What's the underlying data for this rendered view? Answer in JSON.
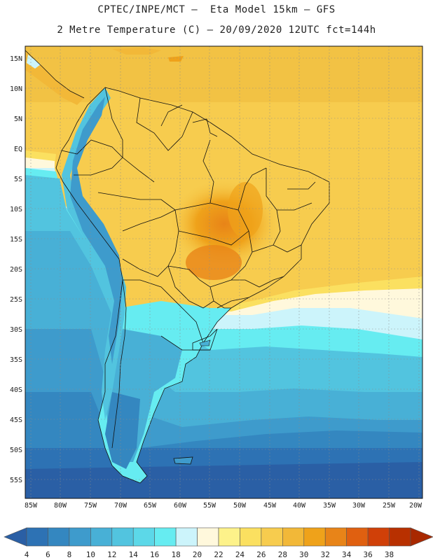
{
  "header": {
    "line1": "CPTEC/INPE/MCT –  Eta Model 15km – GFS",
    "line2": "2 Metre Temperature (C) – 20/09/2020 12UTC fct=144h"
  },
  "map": {
    "lat_labels": [
      "15N",
      "10N",
      "5N",
      "EQ",
      "5S",
      "10S",
      "15S",
      "20S",
      "25S",
      "30S",
      "35S",
      "40S",
      "45S",
      "50S",
      "55S"
    ],
    "lon_labels": [
      "85W",
      "80W",
      "75W",
      "70W",
      "65W",
      "60W",
      "55W",
      "50W",
      "45W",
      "40W",
      "35W",
      "30W",
      "25W",
      "20W"
    ]
  },
  "colorbar": {
    "levels": [
      "4",
      "6",
      "8",
      "10",
      "12",
      "14",
      "16",
      "18",
      "20",
      "22",
      "24",
      "26",
      "28",
      "30",
      "32",
      "34",
      "36",
      "38"
    ],
    "colors": [
      "#2a5fa5",
      "#2d72b4",
      "#3487c0",
      "#3e9bcc",
      "#48b0d6",
      "#52c4df",
      "#5cd8e8",
      "#66ecf1",
      "#ccf4fb",
      "#fff8dc",
      "#fdf28a",
      "#fbe060",
      "#f7cc4e",
      "#f2b838",
      "#efa21a",
      "#e88418",
      "#e06010",
      "#d04008",
      "#b83000",
      "#a82800"
    ]
  }
}
